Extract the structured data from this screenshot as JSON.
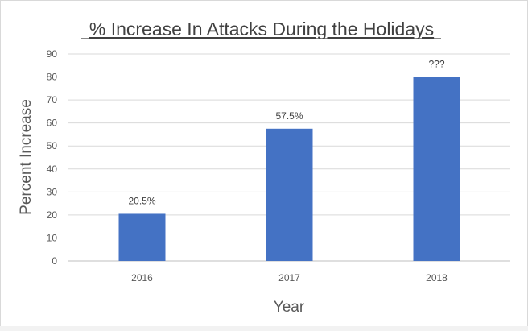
{
  "chart_data": {
    "type": "bar",
    "title": "% Increase In Attacks During the Holidays",
    "xlabel": "Year",
    "ylabel": "Percent Increase",
    "categories": [
      "2016",
      "2017",
      "2018"
    ],
    "values": [
      20.5,
      57.5,
      80
    ],
    "data_labels": [
      "20.5%",
      "57.5%",
      "???"
    ],
    "ylim": [
      0,
      90
    ],
    "yticks": [
      "0",
      "10",
      "20",
      "30",
      "40",
      "50",
      "60",
      "70",
      "80",
      "90"
    ],
    "grid": true,
    "legend": "none",
    "bar_color": "#4472c4"
  }
}
